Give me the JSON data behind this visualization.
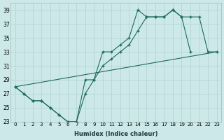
{
  "xlabel": "Humidex (Indice chaleur)",
  "xlim": [
    -0.5,
    23.5
  ],
  "ylim": [
    23,
    40
  ],
  "xticks": [
    0,
    1,
    2,
    3,
    4,
    5,
    6,
    7,
    8,
    9,
    10,
    11,
    12,
    13,
    14,
    15,
    16,
    17,
    18,
    19,
    20,
    21,
    22,
    23
  ],
  "yticks": [
    23,
    25,
    27,
    29,
    31,
    33,
    35,
    37,
    39
  ],
  "bg_color": "#cde8e8",
  "line_color": "#1a6b5a",
  "grid_color": "#b0d0d0",
  "line1_x": [
    0,
    1,
    2,
    3,
    4,
    5,
    6,
    7,
    8,
    9,
    10,
    11,
    12,
    13,
    14,
    15,
    16,
    17,
    18,
    19,
    20
  ],
  "line1_y": [
    28,
    27,
    26,
    26,
    25,
    24,
    23,
    23,
    29,
    29,
    33,
    33,
    34,
    35,
    39,
    38,
    38,
    38,
    39,
    38,
    33
  ],
  "line2_x": [
    0,
    1,
    2,
    3,
    4,
    5,
    6,
    7,
    8,
    9,
    10,
    11,
    12,
    13,
    14,
    15,
    16,
    17,
    18,
    19,
    20,
    21,
    22,
    23
  ],
  "line2_y": [
    28,
    27,
    26,
    26,
    25,
    24,
    23,
    23,
    27,
    29,
    31,
    32,
    33,
    34,
    36,
    38,
    38,
    38,
    39,
    38,
    38,
    38,
    33,
    33
  ],
  "line3_x": [
    0,
    23
  ],
  "line3_y": [
    28,
    33
  ]
}
